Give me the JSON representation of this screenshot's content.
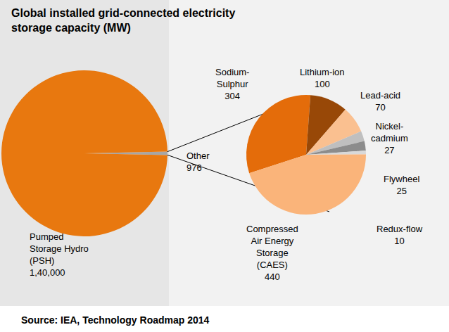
{
  "chart_data": [
    {
      "type": "pie",
      "title": "Global installed grid-connected electricity storage capacity (MW)",
      "source": "Source: IEA, Technology Roadmap 2014",
      "categories": [
        "Other",
        "Pumped Storage Hydro (PSH)"
      ],
      "values": [
        976,
        140000
      ],
      "value_labels": [
        "976",
        "1,40,000"
      ],
      "colors": [
        "#a6a6a6",
        "#e8780f"
      ],
      "data_labels": true
    },
    {
      "type": "pie",
      "categories": [
        "Sodium-Sulphur",
        "Lithium-ion",
        "Lead-acid",
        "Nickel-cadmium",
        "Flywheel",
        "Redux-flow",
        "Compressed Air Energy Storage (CAES)"
      ],
      "values": [
        304,
        100,
        70,
        27,
        25,
        10,
        440
      ],
      "colors": [
        "#e46c0a",
        "#984807",
        "#fac090",
        "#bfbfbf",
        "#8c8c8c",
        "#d9d9d9",
        "#fab47a"
      ],
      "data_labels": true
    }
  ]
}
